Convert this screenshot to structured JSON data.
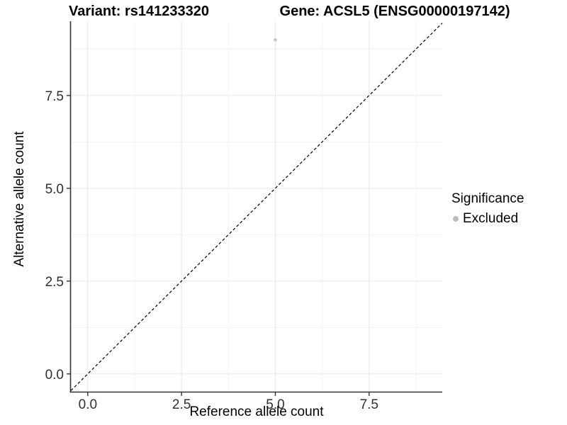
{
  "header": {
    "left_title": "Variant: rs141233320",
    "right_title": "Gene: ACSL5 (ENSG00000197142)"
  },
  "chart_data": {
    "type": "scatter",
    "xlabel": "Reference allele count",
    "ylabel": "Alternative allele count",
    "x_ticks": [
      0,
      2.5,
      5,
      7.5
    ],
    "x_tick_labels": [
      "0.0",
      "2.5",
      "5.0",
      "7.5"
    ],
    "y_ticks": [
      0,
      2.5,
      5,
      7.5
    ],
    "y_tick_labels": [
      "0.0",
      "2.5",
      "5.0",
      "7.5"
    ],
    "x_minor_ticks": [
      1.25,
      3.75,
      6.25,
      8.75
    ],
    "y_minor_ticks": [
      1.25,
      3.75,
      6.25,
      8.75
    ],
    "xlim": [
      -0.45,
      9.45
    ],
    "ylim": [
      -0.48,
      9.5
    ],
    "grid": true,
    "points": [
      {
        "x": 5,
        "y": 9,
        "series": "Excluded"
      }
    ],
    "reference_line": {
      "type": "identity",
      "slope": 1,
      "intercept": 0,
      "style": "dashed"
    },
    "legend": {
      "title": "Significance",
      "position": "right",
      "entries": [
        {
          "label": "Excluded",
          "color": "#bdbdbd"
        }
      ]
    },
    "colors": {
      "point": "#c3c3c3",
      "major_grid": "#e7e7e7",
      "minor_grid": "#f3f3f3",
      "axis_line": "#333333",
      "tick_mark": "#333333",
      "tick_label": "#303030",
      "reference_line": "#000000",
      "panel_background": "#ffffff"
    }
  }
}
